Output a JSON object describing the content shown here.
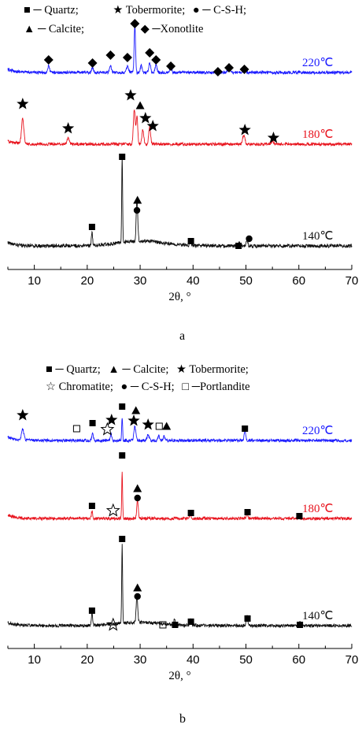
{
  "chart_data": [
    {
      "type": "line",
      "panel_label": "a",
      "xlabel": "2θ, °",
      "ylabel": "",
      "xlim": [
        5,
        70
      ],
      "x_ticks": [
        10,
        20,
        30,
        40,
        50,
        60,
        70
      ],
      "legend": [
        [
          "■ ─ Quartz;",
          "★ Tobermorite;",
          "● ─ C-S-H;"
        ],
        [
          "▲ ─ Calcite;",
          "◆ ─Xonotlite"
        ]
      ],
      "series": [
        {
          "name": "220℃",
          "color": "#1a1aff",
          "label_color": "#1a1aff",
          "baseline": 92,
          "noise": 1.8,
          "peaks": [
            [
              12.7,
              8,
              0.25
            ],
            [
              21,
              6,
              0.25
            ],
            [
              24.4,
              8,
              0.25
            ],
            [
              27.6,
              8,
              0.25
            ],
            [
              29,
              62,
              0.18
            ],
            [
              30.2,
              10,
              0.2
            ],
            [
              31.8,
              12,
              0.25
            ],
            [
              33,
              10,
              0.25
            ],
            [
              35.8,
              6,
              0.25
            ],
            [
              44.7,
              4,
              0.3
            ],
            [
              46.8,
              6,
              0.3
            ],
            [
              49.7,
              6,
              0.3
            ]
          ],
          "markers": [
            {
              "sym": "diamond",
              "x": 12.7,
              "y": 76
            },
            {
              "sym": "diamond",
              "x": 21.0,
              "y": 80
            },
            {
              "sym": "diamond",
              "x": 24.4,
              "y": 70
            },
            {
              "sym": "diamond",
              "x": 27.6,
              "y": 73
            },
            {
              "sym": "diamond",
              "x": 29.0,
              "y": 30
            },
            {
              "sym": "diamond",
              "x": 31.8,
              "y": 67
            },
            {
              "sym": "diamond",
              "x": 33.0,
              "y": 76
            },
            {
              "sym": "diamond",
              "x": 35.8,
              "y": 84
            },
            {
              "sym": "diamond",
              "x": 44.7,
              "y": 91
            },
            {
              "sym": "diamond",
              "x": 46.8,
              "y": 86
            },
            {
              "sym": "diamond",
              "x": 49.7,
              "y": 88
            }
          ]
        },
        {
          "name": "180℃",
          "color": "#e8141e",
          "label_color": "#e8141e",
          "baseline": 183,
          "noise": 1.8,
          "peaks": [
            [
              7.8,
              32,
              0.3
            ],
            [
              16.4,
              8,
              0.3
            ],
            [
              28.9,
              45,
              0.25
            ],
            [
              29.4,
              35,
              0.2
            ],
            [
              30.5,
              18,
              0.25
            ],
            [
              31.8,
              22,
              0.25
            ],
            [
              49.6,
              12,
              0.3
            ],
            [
              55,
              4,
              0.3
            ]
          ],
          "markers": [
            {
              "sym": "star",
              "x": 7.8,
              "y": 132
            },
            {
              "sym": "star",
              "x": 16.4,
              "y": 163
            },
            {
              "sym": "star",
              "x": 28.2,
              "y": 121
            },
            {
              "sym": "triangle",
              "x": 30.0,
              "y": 134
            },
            {
              "sym": "star",
              "x": 31.0,
              "y": 150
            },
            {
              "sym": "star",
              "x": 32.4,
              "y": 160
            },
            {
              "sym": "star",
              "x": 49.8,
              "y": 165
            },
            {
              "sym": "star",
              "x": 55.2,
              "y": 175
            }
          ]
        },
        {
          "name": "140℃",
          "color": "#111111",
          "label_color": "#111111",
          "baseline": 312,
          "noise": 2.2,
          "curve": 6,
          "peaks": [
            [
              20.9,
              18,
              0.15
            ],
            [
              26.6,
              110,
              0.12
            ],
            [
              29.4,
              56,
              0.2
            ],
            [
              39.5,
              6,
              0.2
            ],
            [
              48.8,
              4,
              0.2
            ],
            [
              50.2,
              8,
              0.2
            ]
          ],
          "markers": [
            {
              "sym": "square",
              "x": 20.9,
              "y": 288
            },
            {
              "sym": "square",
              "x": 26.6,
              "y": 199
            },
            {
              "sym": "triangle",
              "x": 29.5,
              "y": 254
            },
            {
              "sym": "circle",
              "x": 29.4,
              "y": 267
            },
            {
              "sym": "square",
              "x": 39.6,
              "y": 306
            },
            {
              "sym": "square",
              "x": 48.6,
              "y": 312
            },
            {
              "sym": "circle",
              "x": 50.6,
              "y": 303
            }
          ]
        }
      ]
    },
    {
      "type": "line",
      "panel_label": "b",
      "xlabel": "2θ, °",
      "ylabel": "",
      "xlim": [
        5,
        70
      ],
      "x_ticks": [
        10,
        20,
        30,
        40,
        50,
        60,
        70
      ],
      "legend": [
        [
          "■ ─ Quartz;",
          "▲ ─ Calcite;",
          "★ Tobermorite;"
        ],
        [
          "☆ Chromatite;",
          "● ─ C-S-H;",
          "□ ─Portlandite"
        ]
      ],
      "series": [
        {
          "name": "220℃",
          "color": "#1a1aff",
          "label_color": "#1a1aff",
          "baseline": 107,
          "noise": 1.8,
          "peaks": [
            [
              7.8,
              14,
              0.3
            ],
            [
              21,
              10,
              0.2
            ],
            [
              24.5,
              8,
              0.2
            ],
            [
              26.6,
              30,
              0.12
            ],
            [
              29,
              18,
              0.25
            ],
            [
              31.5,
              8,
              0.25
            ],
            [
              33.5,
              6,
              0.2
            ],
            [
              34.5,
              6,
              0.2
            ],
            [
              49.8,
              12,
              0.2
            ]
          ],
          "markers": [
            {
              "sym": "star",
              "x": 7.8,
              "y": 75
            },
            {
              "sym": "open-square",
              "x": 18.0,
              "y": 92
            },
            {
              "sym": "square",
              "x": 21.0,
              "y": 85
            },
            {
              "sym": "open-star",
              "x": 23.8,
              "y": 93
            },
            {
              "sym": "star",
              "x": 24.6,
              "y": 81
            },
            {
              "sym": "square",
              "x": 26.6,
              "y": 64
            },
            {
              "sym": "star",
              "x": 28.8,
              "y": 82
            },
            {
              "sym": "triangle",
              "x": 29.2,
              "y": 69
            },
            {
              "sym": "star",
              "x": 31.5,
              "y": 87
            },
            {
              "sym": "open-square",
              "x": 33.6,
              "y": 89
            },
            {
              "sym": "triangle",
              "x": 35.0,
              "y": 89
            },
            {
              "sym": "square",
              "x": 49.8,
              "y": 92
            }
          ]
        },
        {
          "name": "180℃",
          "color": "#e8141e",
          "label_color": "#e8141e",
          "baseline": 206,
          "noise": 1.8,
          "peaks": [
            [
              20.9,
              10,
              0.15
            ],
            [
              26.6,
              58,
              0.12
            ],
            [
              29.5,
              24,
              0.2
            ],
            [
              39.5,
              6,
              0.2
            ],
            [
              50.2,
              6,
              0.2
            ],
            [
              60,
              4,
              0.2
            ]
          ],
          "markers": [
            {
              "sym": "square",
              "x": 20.9,
              "y": 190
            },
            {
              "sym": "square",
              "x": 26.6,
              "y": 126
            },
            {
              "sym": "open-star",
              "x": 24.9,
              "y": 196
            },
            {
              "sym": "triangle",
              "x": 29.5,
              "y": 168
            },
            {
              "sym": "circle",
              "x": 29.5,
              "y": 180
            },
            {
              "sym": "square",
              "x": 39.6,
              "y": 199
            },
            {
              "sym": "square",
              "x": 50.3,
              "y": 198
            },
            {
              "sym": "square",
              "x": 60.1,
              "y": 203
            }
          ]
        },
        {
          "name": "140℃",
          "color": "#111111",
          "label_color": "#111111",
          "baseline": 342,
          "noise": 2.0,
          "curve": 4,
          "peaks": [
            [
              20.9,
              18,
              0.15
            ],
            [
              26.6,
              100,
              0.12
            ],
            [
              29.4,
              35,
              0.2
            ],
            [
              36.5,
              6,
              0.2
            ],
            [
              39.5,
              8,
              0.2
            ],
            [
              50.2,
              12,
              0.2
            ],
            [
              60.2,
              4,
              0.2
            ]
          ],
          "markers": [
            {
              "sym": "square",
              "x": 20.9,
              "y": 323
            },
            {
              "sym": "square",
              "x": 26.6,
              "y": 232
            },
            {
              "sym": "open-star",
              "x": 24.9,
              "y": 341
            },
            {
              "sym": "triangle",
              "x": 29.5,
              "y": 294
            },
            {
              "sym": "circle",
              "x": 29.5,
              "y": 305
            },
            {
              "sym": "open-square",
              "x": 34.3,
              "y": 341
            },
            {
              "sym": "square",
              "x": 36.6,
              "y": 341
            },
            {
              "sym": "square",
              "x": 39.6,
              "y": 337
            },
            {
              "sym": "square",
              "x": 50.3,
              "y": 333
            },
            {
              "sym": "square",
              "x": 60.2,
              "y": 341
            }
          ]
        }
      ]
    }
  ]
}
